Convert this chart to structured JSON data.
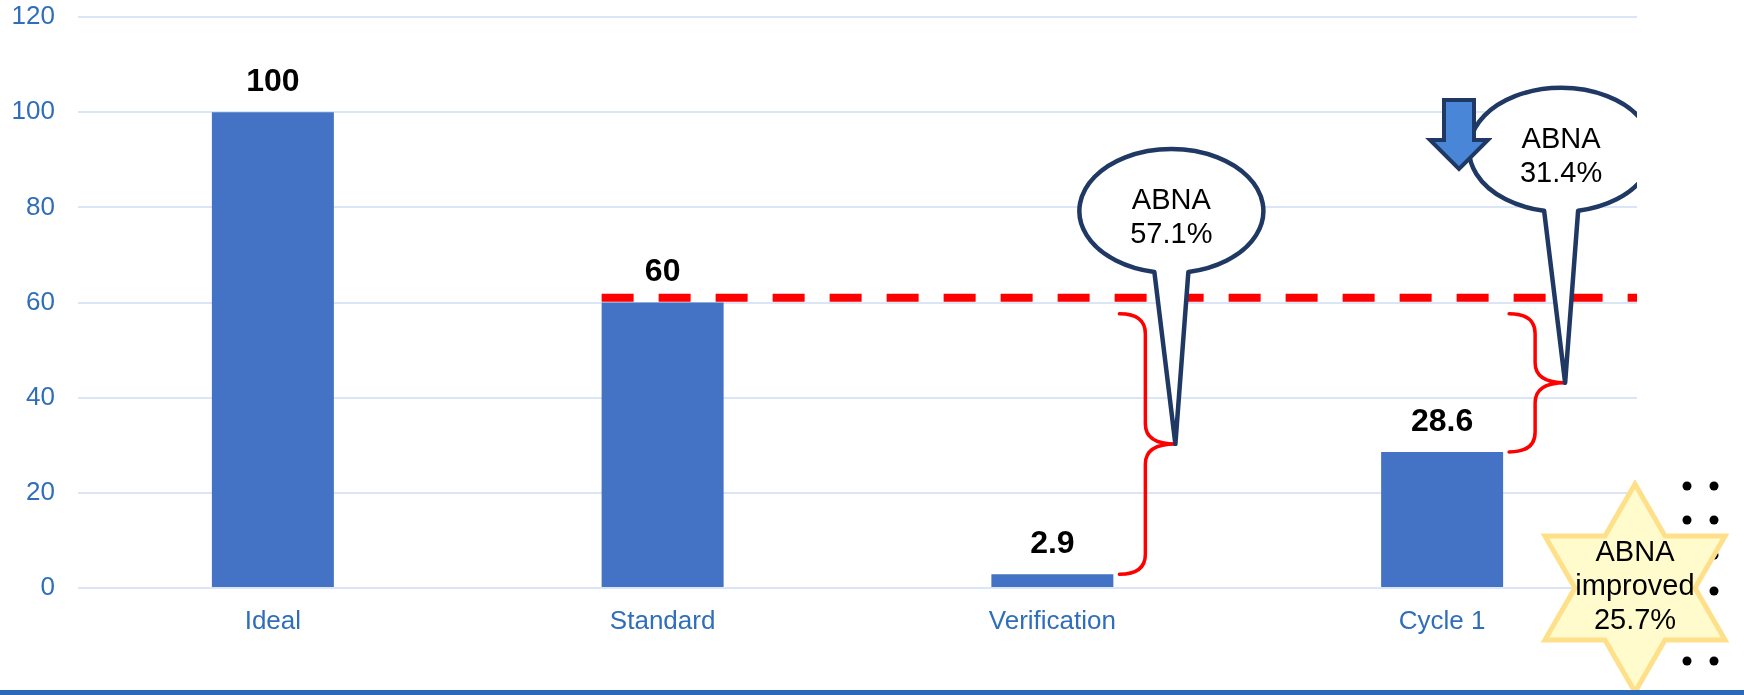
{
  "chart_data": {
    "type": "bar",
    "categories": [
      "Ideal",
      "Standard",
      "Verification",
      "Cycle 1"
    ],
    "values": [
      100,
      60,
      2.9,
      28.6
    ],
    "color": "#4472c4",
    "ylim": [
      0,
      120
    ],
    "yticks": [
      0,
      20,
      40,
      60,
      80,
      100,
      120
    ],
    "grid": "y",
    "data_labels": true,
    "ref_lines": [
      {
        "axis": "y",
        "value": 61,
        "color": "#ff0000",
        "line_style": "dashed"
      }
    ],
    "annotations": [
      "ABNA 57.1%",
      "ABNA 31.4%",
      "ABNA improved 25.7%"
    ]
  }
}
